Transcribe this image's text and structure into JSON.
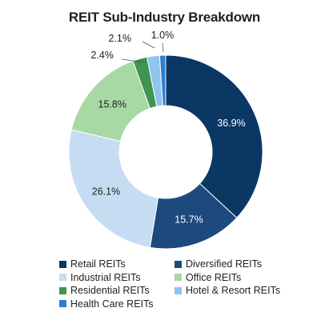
{
  "chart_data": {
    "type": "pie",
    "donut": true,
    "title": "REIT Sub-Industry Breakdown",
    "categories": [
      "Retail REITs",
      "Diversified REITs",
      "Industrial REITs",
      "Office REITs",
      "Residential REITs",
      "Hotel & Resort REITs",
      "Health Care REITs"
    ],
    "values": [
      36.9,
      15.7,
      26.1,
      15.8,
      2.4,
      2.1,
      1.0
    ],
    "labels": [
      "36.9%",
      "15.7%",
      "26.1%",
      "15.8%",
      "2.4%",
      "2.1%",
      "1.0%"
    ],
    "colors": [
      "#0b3764",
      "#1c4a7e",
      "#c6dcf2",
      "#a8d8a4",
      "#3e9450",
      "#90c4ec",
      "#2b7fd4"
    ],
    "legend_position": "bottom"
  }
}
